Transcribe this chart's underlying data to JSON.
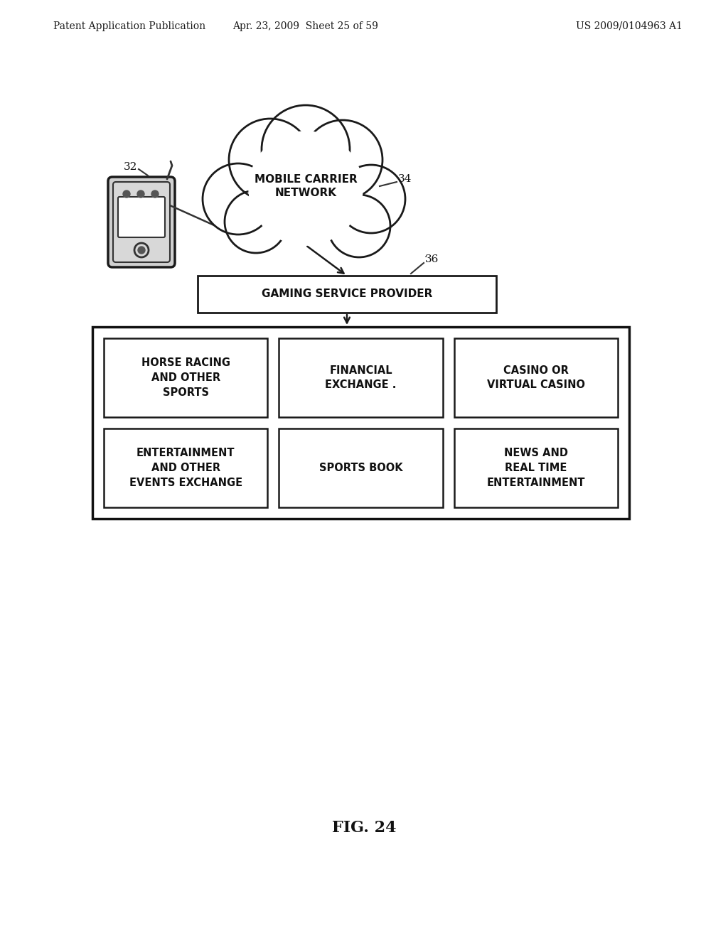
{
  "bg_color": "#ffffff",
  "header_left": "Patent Application Publication",
  "header_mid": "Apr. 23, 2009  Sheet 25 of 59",
  "header_right": "US 2009/0104963 A1",
  "fig_label": "FIG. 24",
  "cloud_label": "MOBILE CARRIER\nNETWORK",
  "cloud_ref": "34",
  "phone_ref": "32",
  "gsp_label": "GAMING SERVICE PROVIDER",
  "gsp_ref": "36",
  "cells": [
    {
      "label": "HORSE RACING\nAND OTHER\nSPORTS",
      "col": 0,
      "row": 0
    },
    {
      "label": "FINANCIAL\nEXCHANGE .",
      "col": 1,
      "row": 0
    },
    {
      "label": "CASINO OR\nVIRTUAL CASINO",
      "col": 2,
      "row": 0
    },
    {
      "label": "ENTERTAINMENT\nAND OTHER\nEVENTS EXCHANGE",
      "col": 0,
      "row": 1
    },
    {
      "label": "SPORTS BOOK",
      "col": 1,
      "row": 1
    },
    {
      "label": "NEWS AND\nREAL TIME\nENTERTAINMENT",
      "col": 2,
      "row": 1
    }
  ]
}
